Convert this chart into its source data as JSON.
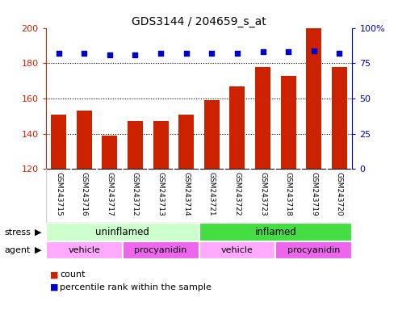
{
  "title": "GDS3144 / 204659_s_at",
  "samples": [
    "GSM243715",
    "GSM243716",
    "GSM243717",
    "GSM243712",
    "GSM243713",
    "GSM243714",
    "GSM243721",
    "GSM243722",
    "GSM243723",
    "GSM243718",
    "GSM243719",
    "GSM243720"
  ],
  "counts": [
    151,
    153,
    139,
    147,
    147,
    151,
    159,
    167,
    178,
    173,
    200,
    178
  ],
  "percentiles": [
    82,
    82,
    81,
    81,
    82,
    82,
    82,
    82,
    83,
    83,
    84,
    82
  ],
  "ylim_left": [
    120,
    200
  ],
  "ylim_right": [
    0,
    100
  ],
  "yticks_left": [
    120,
    140,
    160,
    180,
    200
  ],
  "yticks_right": [
    0,
    25,
    50,
    75,
    100
  ],
  "bar_color": "#cc2200",
  "dot_color": "#0000cc",
  "stress_uninflamed_color": "#ccffcc",
  "stress_inflamed_color": "#44dd44",
  "agent_vehicle_color": "#ffaaff",
  "agent_procyanidin_color": "#ee66ee",
  "stress_labels": [
    {
      "label": "uninflamed",
      "start": 0,
      "end": 6
    },
    {
      "label": "inflamed",
      "start": 6,
      "end": 12
    }
  ],
  "agent_labels": [
    {
      "label": "vehicle",
      "start": 0,
      "end": 3
    },
    {
      "label": "procyanidin",
      "start": 3,
      "end": 6
    },
    {
      "label": "vehicle",
      "start": 6,
      "end": 9
    },
    {
      "label": "procyanidin",
      "start": 9,
      "end": 12
    }
  ],
  "stress_row_label": "stress",
  "agent_row_label": "agent",
  "legend_count_label": "count",
  "legend_pct_label": "percentile rank within the sample",
  "background_color": "#ffffff"
}
